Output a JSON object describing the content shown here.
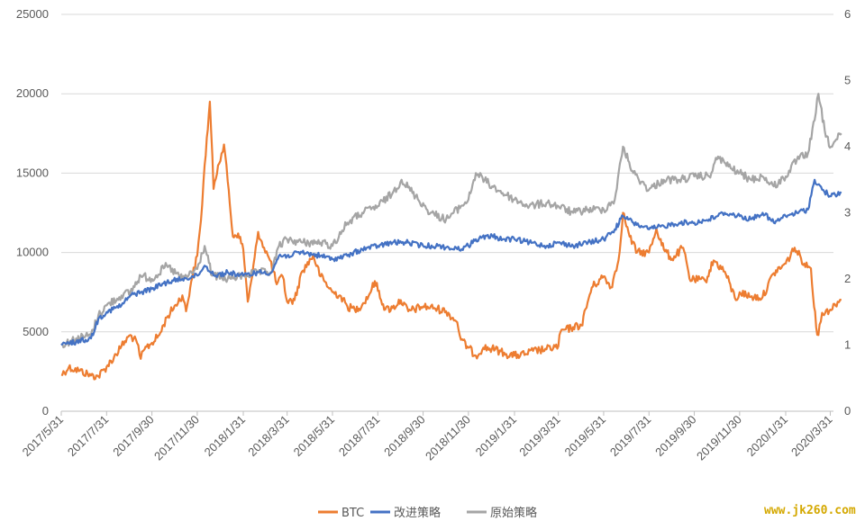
{
  "chart_data": {
    "type": "line",
    "title": "",
    "xlabel": "",
    "ylabel": "",
    "x_tick_labels": [
      "2017/5/31",
      "2017/7/31",
      "2017/9/30",
      "2017/11/30",
      "2018/1/31",
      "2018/3/31",
      "2018/5/31",
      "2018/7/31",
      "2018/9/30",
      "2018/11/30",
      "2019/1/31",
      "2019/3/31",
      "2019/5/31",
      "2019/7/31",
      "2019/9/30",
      "2019/11/30",
      "2020/1/31",
      "2020/3/31"
    ],
    "y_left": {
      "ticks": [
        0,
        5000,
        10000,
        15000,
        20000,
        25000
      ],
      "ylim": [
        0,
        25000
      ]
    },
    "y_right": {
      "ticks": [
        0,
        1,
        2,
        3,
        4,
        5,
        6
      ],
      "ylim": [
        0,
        6
      ]
    },
    "grid": "horizontal",
    "legend_position": "bottom-center",
    "series": [
      {
        "name": "BTC",
        "axis": "left",
        "color": "#ED7D31",
        "points": [
          [
            "2017/5/31",
            2300
          ],
          [
            "2017/6/10",
            2750
          ],
          [
            "2017/6/25",
            2550
          ],
          [
            "2017/7/10",
            2250
          ],
          [
            "2017/7/20",
            2200
          ],
          [
            "2017/7/31",
            2800
          ],
          [
            "2017/8/10",
            3400
          ],
          [
            "2017/8/20",
            4100
          ],
          [
            "2017/9/1",
            4800
          ],
          [
            "2017/9/10",
            4300
          ],
          [
            "2017/9/15",
            3300
          ],
          [
            "2017/9/20",
            3900
          ],
          [
            "2017/9/30",
            4300
          ],
          [
            "2017/10/10",
            4800
          ],
          [
            "2017/10/20",
            5900
          ],
          [
            "2017/11/1",
            6700
          ],
          [
            "2017/11/10",
            7300
          ],
          [
            "2017/11/15",
            6300
          ],
          [
            "2017/11/22",
            8200
          ],
          [
            "2017/11/30",
            9800
          ],
          [
            "2017/12/5",
            12000
          ],
          [
            "2017/12/10",
            15500
          ],
          [
            "2017/12/17",
            19500
          ],
          [
            "2017/12/22",
            14000
          ],
          [
            "2017/12/28",
            15500
          ],
          [
            "2018/1/5",
            16800
          ],
          [
            "2018/1/10",
            14500
          ],
          [
            "2018/1/17",
            11000
          ],
          [
            "2018/1/24",
            11200
          ],
          [
            "2018/1/31",
            10200
          ],
          [
            "2018/2/6",
            6900
          ],
          [
            "2018/2/12",
            8500
          ],
          [
            "2018/2/20",
            11300
          ],
          [
            "2018/2/28",
            10300
          ],
          [
            "2018/3/8",
            9500
          ],
          [
            "2018/3/17",
            8000
          ],
          [
            "2018/3/25",
            8500
          ],
          [
            "2018/3/31",
            6900
          ],
          [
            "2018/4/10",
            7000
          ],
          [
            "2018/4/20",
            8800
          ],
          [
            "2018/5/5",
            9800
          ],
          [
            "2018/5/15",
            8500
          ],
          [
            "2018/5/31",
            7500
          ],
          [
            "2018/6/10",
            7300
          ],
          [
            "2018/6/20",
            6600
          ],
          [
            "2018/6/30",
            6400
          ],
          [
            "2018/7/10",
            6700
          ],
          [
            "2018/7/20",
            7400
          ],
          [
            "2018/7/27",
            8200
          ],
          [
            "2018/8/10",
            6400
          ],
          [
            "2018/8/20",
            6500
          ],
          [
            "2018/8/31",
            7000
          ],
          [
            "2018/9/10",
            6300
          ],
          [
            "2018/9/30",
            6600
          ],
          [
            "2018/10/15",
            6500
          ],
          [
            "2018/10/31",
            6300
          ],
          [
            "2018/11/15",
            5600
          ],
          [
            "2018/11/20",
            4500
          ],
          [
            "2018/11/30",
            4000
          ],
          [
            "2018/12/10",
            3500
          ],
          [
            "2018/12/20",
            4000
          ],
          [
            "2019/1/5",
            3900
          ],
          [
            "2019/1/20",
            3600
          ],
          [
            "2019/1/31",
            3500
          ],
          [
            "2019/2/15",
            3600
          ],
          [
            "2019/2/25",
            3800
          ],
          [
            "2019/3/15",
            3900
          ],
          [
            "2019/3/31",
            4100
          ],
          [
            "2019/4/3",
            5000
          ],
          [
            "2019/4/20",
            5300
          ],
          [
            "2019/5/1",
            5400
          ],
          [
            "2019/5/15",
            7800
          ],
          [
            "2019/5/31",
            8500
          ],
          [
            "2019/6/10",
            7800
          ],
          [
            "2019/6/20",
            9500
          ],
          [
            "2019/6/26",
            12500
          ],
          [
            "2019/7/5",
            11000
          ],
          [
            "2019/7/15",
            10000
          ],
          [
            "2019/7/31",
            10000
          ],
          [
            "2019/8/10",
            11500
          ],
          [
            "2019/8/20",
            10200
          ],
          [
            "2019/8/31",
            9600
          ],
          [
            "2019/9/15",
            10300
          ],
          [
            "2019/9/25",
            8200
          ],
          [
            "2019/9/30",
            8300
          ],
          [
            "2019/10/15",
            8200
          ],
          [
            "2019/10/26",
            9500
          ],
          [
            "2019/11/10",
            8800
          ],
          [
            "2019/11/25",
            7000
          ],
          [
            "2019/11/30",
            7500
          ],
          [
            "2019/12/15",
            7200
          ],
          [
            "2019/12/31",
            7200
          ],
          [
            "2020/1/15",
            8700
          ],
          [
            "2020/1/31",
            9300
          ],
          [
            "2020/2/12",
            10300
          ],
          [
            "2020/2/25",
            9300
          ],
          [
            "2020/3/5",
            9000
          ],
          [
            "2020/3/12",
            5300
          ],
          [
            "2020/3/15",
            4800
          ],
          [
            "2020/3/20",
            6200
          ],
          [
            "2020/3/31",
            6400
          ],
          [
            "2020/4/10",
            6900
          ],
          [
            "2020/4/15",
            7000
          ]
        ]
      },
      {
        "name": "改进策略",
        "axis": "right",
        "color": "#4472C4",
        "points": [
          [
            "2017/5/31",
            1.0
          ],
          [
            "2017/6/20",
            1.05
          ],
          [
            "2017/7/10",
            1.1
          ],
          [
            "2017/7/20",
            1.4
          ],
          [
            "2017/7/31",
            1.5
          ],
          [
            "2017/8/20",
            1.6
          ],
          [
            "2017/9/1",
            1.75
          ],
          [
            "2017/9/15",
            1.8
          ],
          [
            "2017/9/30",
            1.85
          ],
          [
            "2017/10/20",
            1.95
          ],
          [
            "2017/11/10",
            2.0
          ],
          [
            "2017/11/30",
            2.05
          ],
          [
            "2017/12/10",
            2.2
          ],
          [
            "2017/12/25",
            2.05
          ],
          [
            "2018/1/10",
            2.1
          ],
          [
            "2018/1/31",
            2.05
          ],
          [
            "2018/2/20",
            2.1
          ],
          [
            "2018/3/10",
            2.1
          ],
          [
            "2018/3/20",
            2.35
          ],
          [
            "2018/3/31",
            2.35
          ],
          [
            "2018/4/20",
            2.4
          ],
          [
            "2018/5/15",
            2.35
          ],
          [
            "2018/5/31",
            2.3
          ],
          [
            "2018/6/20",
            2.35
          ],
          [
            "2018/7/10",
            2.45
          ],
          [
            "2018/7/31",
            2.5
          ],
          [
            "2018/8/20",
            2.55
          ],
          [
            "2018/9/10",
            2.55
          ],
          [
            "2018/9/30",
            2.5
          ],
          [
            "2018/10/20",
            2.5
          ],
          [
            "2018/11/15",
            2.45
          ],
          [
            "2018/11/30",
            2.5
          ],
          [
            "2018/12/10",
            2.6
          ],
          [
            "2019/1/1",
            2.65
          ],
          [
            "2019/1/15",
            2.6
          ],
          [
            "2019/1/31",
            2.6
          ],
          [
            "2019/2/20",
            2.55
          ],
          [
            "2019/3/15",
            2.5
          ],
          [
            "2019/3/31",
            2.55
          ],
          [
            "2019/4/20",
            2.5
          ],
          [
            "2019/5/10",
            2.55
          ],
          [
            "2019/5/31",
            2.6
          ],
          [
            "2019/6/15",
            2.75
          ],
          [
            "2019/6/26",
            2.95
          ],
          [
            "2019/7/10",
            2.85
          ],
          [
            "2019/7/31",
            2.75
          ],
          [
            "2019/8/20",
            2.8
          ],
          [
            "2019/9/10",
            2.85
          ],
          [
            "2019/9/30",
            2.85
          ],
          [
            "2019/10/20",
            2.9
          ],
          [
            "2019/11/10",
            3.0
          ],
          [
            "2019/11/30",
            2.95
          ],
          [
            "2019/12/15",
            2.9
          ],
          [
            "2019/12/31",
            3.0
          ],
          [
            "2020/1/15",
            2.85
          ],
          [
            "2020/1/31",
            2.95
          ],
          [
            "2020/2/15",
            3.0
          ],
          [
            "2020/3/1",
            3.05
          ],
          [
            "2020/3/10",
            3.5
          ],
          [
            "2020/3/20",
            3.35
          ],
          [
            "2020/4/1",
            3.25
          ],
          [
            "2020/4/15",
            3.3
          ]
        ]
      },
      {
        "name": "原始策略",
        "axis": "right",
        "color": "#A5A5A5",
        "points": [
          [
            "2017/5/31",
            1.0
          ],
          [
            "2017/6/20",
            1.1
          ],
          [
            "2017/7/10",
            1.15
          ],
          [
            "2017/7/20",
            1.45
          ],
          [
            "2017/7/31",
            1.6
          ],
          [
            "2017/8/20",
            1.75
          ],
          [
            "2017/9/1",
            1.8
          ],
          [
            "2017/9/15",
            2.05
          ],
          [
            "2017/9/30",
            2.0
          ],
          [
            "2017/10/20",
            2.2
          ],
          [
            "2017/11/10",
            2.0
          ],
          [
            "2017/11/30",
            2.15
          ],
          [
            "2017/12/10",
            2.5
          ],
          [
            "2017/12/20",
            2.05
          ],
          [
            "2018/1/10",
            2.0
          ],
          [
            "2018/1/31",
            2.05
          ],
          [
            "2018/2/20",
            2.1
          ],
          [
            "2018/3/10",
            2.1
          ],
          [
            "2018/3/20",
            2.5
          ],
          [
            "2018/3/31",
            2.6
          ],
          [
            "2018/4/20",
            2.55
          ],
          [
            "2018/5/15",
            2.55
          ],
          [
            "2018/5/31",
            2.5
          ],
          [
            "2018/6/20",
            2.85
          ],
          [
            "2018/7/10",
            3.0
          ],
          [
            "2018/7/31",
            3.1
          ],
          [
            "2018/8/20",
            3.3
          ],
          [
            "2018/9/1",
            3.5
          ],
          [
            "2018/9/20",
            3.25
          ],
          [
            "2018/10/10",
            3.0
          ],
          [
            "2018/10/31",
            2.9
          ],
          [
            "2018/11/20",
            3.1
          ],
          [
            "2018/11/30",
            3.2
          ],
          [
            "2018/12/10",
            3.6
          ],
          [
            "2019/1/1",
            3.4
          ],
          [
            "2019/1/15",
            3.3
          ],
          [
            "2019/1/31",
            3.2
          ],
          [
            "2019/2/20",
            3.1
          ],
          [
            "2019/3/15",
            3.15
          ],
          [
            "2019/3/31",
            3.1
          ],
          [
            "2019/4/20",
            3.0
          ],
          [
            "2019/5/10",
            3.05
          ],
          [
            "2019/5/31",
            3.05
          ],
          [
            "2019/6/15",
            3.2
          ],
          [
            "2019/6/26",
            4.0
          ],
          [
            "2019/7/10",
            3.6
          ],
          [
            "2019/7/31",
            3.35
          ],
          [
            "2019/8/20",
            3.5
          ],
          [
            "2019/9/10",
            3.5
          ],
          [
            "2019/9/30",
            3.55
          ],
          [
            "2019/10/20",
            3.55
          ],
          [
            "2019/11/1",
            3.85
          ],
          [
            "2019/11/15",
            3.7
          ],
          [
            "2019/11/30",
            3.6
          ],
          [
            "2019/12/15",
            3.5
          ],
          [
            "2019/12/31",
            3.55
          ],
          [
            "2020/1/15",
            3.4
          ],
          [
            "2020/1/31",
            3.55
          ],
          [
            "2020/2/15",
            3.8
          ],
          [
            "2020/3/1",
            3.9
          ],
          [
            "2020/3/10",
            4.4
          ],
          [
            "2020/3/15",
            4.8
          ],
          [
            "2020/3/25",
            4.15
          ],
          [
            "2020/4/1",
            4.0
          ],
          [
            "2020/4/15",
            4.2
          ]
        ]
      }
    ]
  },
  "legend": {
    "items": [
      {
        "label": "BTC",
        "color": "#ED7D31"
      },
      {
        "label": "改进策略",
        "color": "#4472C4"
      },
      {
        "label": "原始策略",
        "color": "#A5A5A5"
      }
    ]
  },
  "watermark": "www.jk260.com"
}
